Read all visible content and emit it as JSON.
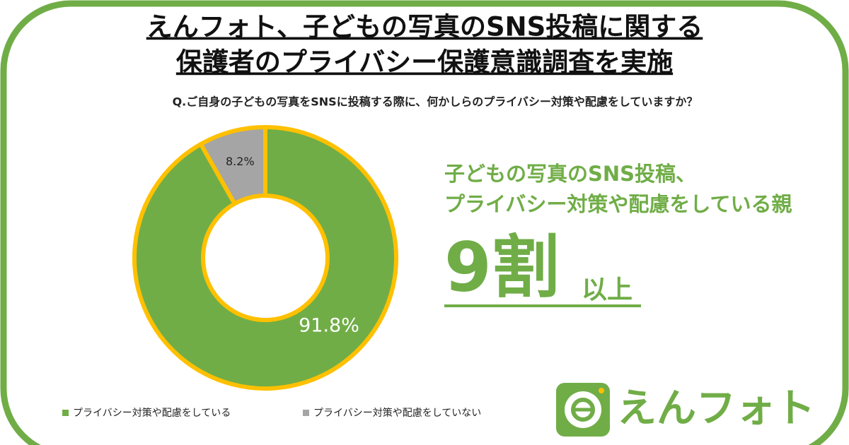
{
  "chart_data": {
    "type": "donut",
    "title": [
      "えんフォト、子どもの写真のSNS投稿に関する",
      "保護者のプライバシー保護意識調査を実施"
    ],
    "subtitle": "Q.ご自身の子どもの写真をSNSに投稿する際に、何かしらのプライバシー対策や配慮をしていますか？",
    "categories": [
      "プライバシー対策や配慮をしている",
      "プライバシー対策や配慮をしていない"
    ],
    "values": [
      91.8,
      8.2
    ],
    "value_labels": [
      "91.8%",
      "8.2%"
    ],
    "colors": [
      "#70ad47",
      "#a5a5a5"
    ],
    "legend": "bottom-left"
  },
  "callout": {
    "lines": [
      "子どもの写真のSNS投稿、",
      "プライバシー対策や配慮をしている親"
    ],
    "big": "9割",
    "suffix": "以上"
  },
  "brand": "えんフォト"
}
